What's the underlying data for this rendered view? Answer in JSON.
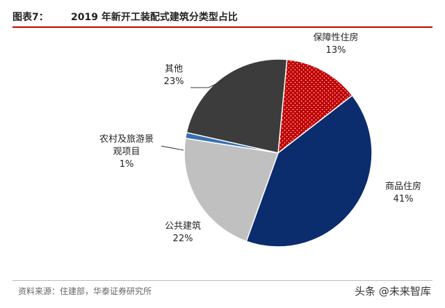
{
  "header": {
    "prefix": "图表7：",
    "title": "2019 年新开工装配式建筑分类型占比"
  },
  "chart_data": {
    "type": "pie",
    "title": "2019 年新开工装配式建筑分类型占比",
    "slices": [
      {
        "name": "保障性住房",
        "value": 13,
        "label": "13%",
        "color": "#c00000",
        "pattern": "dots"
      },
      {
        "name": "商品住房",
        "value": 41,
        "label": "41%",
        "color": "#0b2d6e",
        "pattern": "none"
      },
      {
        "name": "公共建筑",
        "value": 22,
        "label": "22%",
        "color": "#c0c0c0",
        "pattern": "none"
      },
      {
        "name_lines": [
          "农村及旅游景",
          "观项目"
        ],
        "value": 1,
        "label": "1%",
        "color": "#3a6fb0",
        "pattern": "none"
      },
      {
        "name": "其他",
        "value": 23,
        "label": "23%",
        "color": "#3c3c3c",
        "pattern": "none"
      }
    ]
  },
  "footer": {
    "source": "资料来源：住建部，华泰证券研究所",
    "watermark": "头条 @未来智库"
  }
}
